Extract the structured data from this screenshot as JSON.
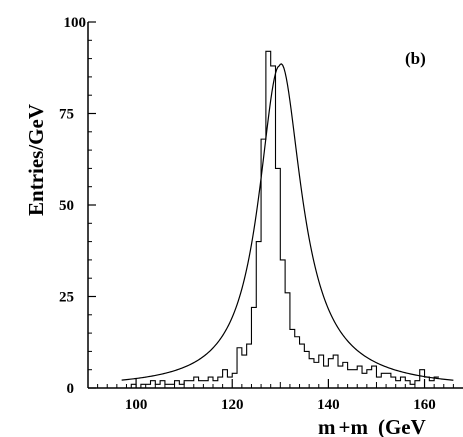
{
  "chart_data": {
    "type": "line",
    "title": "",
    "panel_label": "(b)",
    "ylabel": "Entries/GeV",
    "xlabel_text": "m",
    "xlabel_tail": "+m",
    "xlabel_unit": "(GeV",
    "xlim": [
      90,
      168
    ],
    "ylim": [
      0,
      100
    ],
    "x_ticks": [
      100,
      120,
      140,
      160
    ],
    "y_ticks": [
      0,
      25,
      50,
      75,
      100
    ],
    "grid": false,
    "legend": "none",
    "series": [
      {
        "kind": "histogram",
        "bin_width": 1,
        "edges_start": 98,
        "values": [
          0,
          1,
          0,
          1,
          1,
          2,
          1,
          2,
          1,
          1,
          2,
          1,
          2,
          2,
          3,
          2,
          2,
          3,
          2,
          3,
          5,
          3,
          4,
          11,
          9,
          12,
          22,
          40,
          68,
          92,
          88,
          60,
          35,
          26,
          16,
          14,
          12,
          10,
          8,
          7,
          9,
          6,
          8,
          9,
          6,
          7,
          5,
          5,
          6,
          4,
          5,
          6,
          3,
          4,
          4,
          3,
          2,
          3,
          2,
          1,
          2,
          5,
          3,
          2,
          3
        ]
      },
      {
        "kind": "fit_curve",
        "peak_x": 129.8,
        "peak_y": 88,
        "width_gamma": 5.2,
        "tail_amplitude": 9,
        "tail_decay": 11
      }
    ]
  }
}
